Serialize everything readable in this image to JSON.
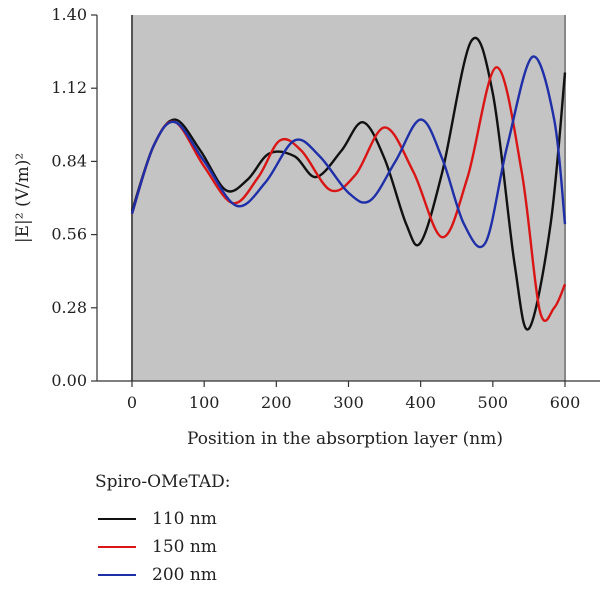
{
  "chart_data": {
    "type": "line",
    "xlabel": "Position in the absorption layer (nm)",
    "ylabel": "|E|² (V/m)²",
    "xlim": [
      0,
      600
    ],
    "ylim": [
      0,
      1.4
    ],
    "xticks": [
      "0",
      "100",
      "200",
      "300",
      "400",
      "500",
      "600"
    ],
    "yticks": [
      "0.00",
      "0.28",
      "0.56",
      "0.84",
      "1.12",
      "1.40"
    ],
    "shaded_region": [
      0,
      600
    ],
    "legend_title": "Spiro-OMeTAD:",
    "series": [
      {
        "name": "110 nm",
        "color": "#111111",
        "x": [
          0,
          30,
          60,
          95,
          130,
          160,
          190,
          225,
          255,
          290,
          320,
          350,
          380,
          400,
          430,
          470,
          500,
          530,
          550,
          580,
          600
        ],
        "y": [
          0.65,
          0.9,
          1.0,
          0.88,
          0.73,
          0.77,
          0.87,
          0.86,
          0.78,
          0.88,
          0.99,
          0.85,
          0.6,
          0.53,
          0.8,
          1.3,
          1.1,
          0.45,
          0.2,
          0.6,
          1.18
        ]
      },
      {
        "name": "150 nm",
        "color": "#d91515",
        "x": [
          0,
          30,
          60,
          100,
          140,
          175,
          205,
          235,
          275,
          310,
          350,
          390,
          430,
          465,
          505,
          540,
          565,
          585,
          600
        ],
        "y": [
          0.64,
          0.9,
          0.99,
          0.82,
          0.68,
          0.78,
          0.92,
          0.88,
          0.73,
          0.79,
          0.97,
          0.8,
          0.55,
          0.78,
          1.2,
          0.8,
          0.27,
          0.28,
          0.37
        ]
      },
      {
        "name": "200 nm",
        "color": "#1f2fa8",
        "x": [
          0,
          30,
          60,
          100,
          145,
          185,
          225,
          260,
          300,
          330,
          365,
          400,
          430,
          460,
          490,
          520,
          555,
          585,
          600
        ],
        "y": [
          0.64,
          0.9,
          0.99,
          0.84,
          0.67,
          0.76,
          0.92,
          0.86,
          0.72,
          0.69,
          0.84,
          1.0,
          0.85,
          0.6,
          0.53,
          0.9,
          1.24,
          1.0,
          0.6
        ]
      }
    ]
  }
}
